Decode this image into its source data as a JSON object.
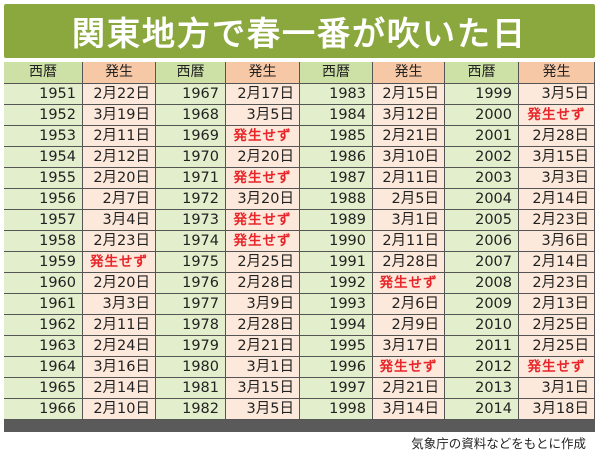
{
  "title": "関東地方で春一番が吹いた日",
  "headers": {
    "year": "西暦",
    "occurrence": "発生"
  },
  "no_occurrence_label": "発生せず",
  "source_note": "気象庁の資料などをもとに作成",
  "columns": [
    {
      "rows": [
        {
          "year": "1951",
          "date": "2月22日"
        },
        {
          "year": "1952",
          "date": "3月19日"
        },
        {
          "year": "1953",
          "date": "2月11日"
        },
        {
          "year": "1954",
          "date": "2月12日"
        },
        {
          "year": "1955",
          "date": "2月20日"
        },
        {
          "year": "1956",
          "date": "2月7日"
        },
        {
          "year": "1957",
          "date": "3月4日"
        },
        {
          "year": "1958",
          "date": "2月23日"
        },
        {
          "year": "1959",
          "date": "発生せず"
        },
        {
          "year": "1960",
          "date": "2月20日"
        },
        {
          "year": "1961",
          "date": "3月3日"
        },
        {
          "year": "1962",
          "date": "2月11日"
        },
        {
          "year": "1963",
          "date": "2月24日"
        },
        {
          "year": "1964",
          "date": "3月16日"
        },
        {
          "year": "1965",
          "date": "2月14日"
        },
        {
          "year": "1966",
          "date": "2月10日"
        }
      ]
    },
    {
      "rows": [
        {
          "year": "1967",
          "date": "2月17日"
        },
        {
          "year": "1968",
          "date": "3月5日"
        },
        {
          "year": "1969",
          "date": "発生せず"
        },
        {
          "year": "1970",
          "date": "2月20日"
        },
        {
          "year": "1971",
          "date": "発生せず"
        },
        {
          "year": "1972",
          "date": "3月20日"
        },
        {
          "year": "1973",
          "date": "発生せず"
        },
        {
          "year": "1974",
          "date": "発生せず"
        },
        {
          "year": "1975",
          "date": "2月25日"
        },
        {
          "year": "1976",
          "date": "2月28日"
        },
        {
          "year": "1977",
          "date": "3月9日"
        },
        {
          "year": "1978",
          "date": "2月28日"
        },
        {
          "year": "1979",
          "date": "2月21日"
        },
        {
          "year": "1980",
          "date": "3月1日"
        },
        {
          "year": "1981",
          "date": "3月15日"
        },
        {
          "year": "1982",
          "date": "3月5日"
        }
      ]
    },
    {
      "rows": [
        {
          "year": "1983",
          "date": "2月15日"
        },
        {
          "year": "1984",
          "date": "3月12日"
        },
        {
          "year": "1985",
          "date": "2月21日"
        },
        {
          "year": "1986",
          "date": "3月10日"
        },
        {
          "year": "1987",
          "date": "2月11日"
        },
        {
          "year": "1988",
          "date": "2月5日"
        },
        {
          "year": "1989",
          "date": "3月1日"
        },
        {
          "year": "1990",
          "date": "2月11日"
        },
        {
          "year": "1991",
          "date": "2月28日"
        },
        {
          "year": "1992",
          "date": "発生せず"
        },
        {
          "year": "1993",
          "date": "2月6日"
        },
        {
          "year": "1994",
          "date": "2月9日"
        },
        {
          "year": "1995",
          "date": "3月17日"
        },
        {
          "year": "1996",
          "date": "発生せず"
        },
        {
          "year": "1997",
          "date": "2月21日"
        },
        {
          "year": "1998",
          "date": "3月14日"
        }
      ]
    },
    {
      "rows": [
        {
          "year": "1999",
          "date": "3月5日"
        },
        {
          "year": "2000",
          "date": "発生せず"
        },
        {
          "year": "2001",
          "date": "2月28日"
        },
        {
          "year": "2002",
          "date": "3月15日"
        },
        {
          "year": "2003",
          "date": "3月3日"
        },
        {
          "year": "2004",
          "date": "2月14日"
        },
        {
          "year": "2005",
          "date": "2月23日"
        },
        {
          "year": "2006",
          "date": "3月6日"
        },
        {
          "year": "2007",
          "date": "2月14日"
        },
        {
          "year": "2008",
          "date": "2月23日"
        },
        {
          "year": "2009",
          "date": "2月13日"
        },
        {
          "year": "2010",
          "date": "2月25日"
        },
        {
          "year": "2011",
          "date": "2月25日"
        },
        {
          "year": "2012",
          "date": "発生せず"
        },
        {
          "year": "2013",
          "date": "3月1日"
        },
        {
          "year": "2014",
          "date": "3月18日"
        }
      ]
    }
  ],
  "colors": {
    "title_bg": "#8ba83e",
    "title_text": "#ffffff",
    "year_header_bg": "#cde0a6",
    "occurrence_header_bg": "#f7c8a6",
    "year_cell_bg": "#e3efcc",
    "occurrence_cell_bg": "#fde9db",
    "no_occurrence_text": "#e8252a"
  }
}
